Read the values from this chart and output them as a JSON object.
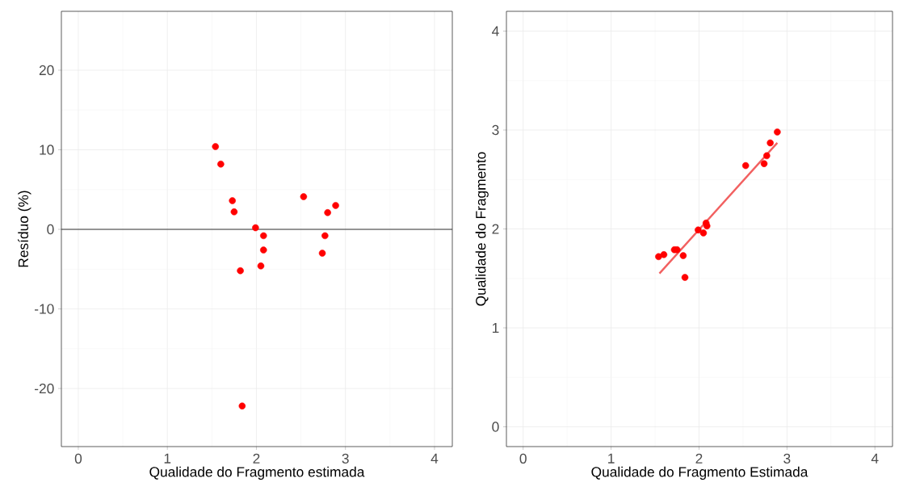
{
  "chart_data": [
    {
      "type": "scatter",
      "xlabel": "Qualidade do Fragmento estimada",
      "ylabel": "Resíduo (%)",
      "xlim": [
        -0.19,
        4.2
      ],
      "ylim": [
        -27.3,
        27.4
      ],
      "xticks": [
        0,
        1,
        2,
        3,
        4
      ],
      "yticks": [
        -20,
        -10,
        0,
        10,
        20
      ],
      "grid": true,
      "ref_lines": [
        {
          "axis": "y",
          "value": 0,
          "color": "#333333"
        }
      ],
      "series": [
        {
          "color": "#ff0000",
          "marker": "circle",
          "x": [
            1.54,
            1.6,
            1.73,
            1.75,
            1.82,
            1.84,
            1.99,
            2.08,
            2.08,
            2.05,
            2.53,
            2.74,
            2.77,
            2.8,
            2.89
          ],
          "values": [
            10.4,
            8.2,
            3.6,
            2.2,
            -5.2,
            -22.2,
            0.2,
            -0.8,
            -2.6,
            -4.6,
            4.1,
            -3.0,
            -0.8,
            2.1,
            3.0
          ]
        }
      ]
    },
    {
      "type": "scatter",
      "xlabel": "Qualidade do Fragmento Estimada",
      "ylabel": "Qualidade do Fragmento",
      "xlim": [
        -0.19,
        4.2
      ],
      "ylim": [
        -0.2,
        4.2
      ],
      "xticks": [
        0,
        1,
        2,
        3,
        4
      ],
      "yticks": [
        0,
        1,
        2,
        3,
        4
      ],
      "grid": true,
      "series": [
        {
          "type": "line",
          "color": "#f26060",
          "x": [
            1.55,
            2.89
          ],
          "values": [
            1.55,
            2.87
          ]
        },
        {
          "color": "#ff0000",
          "marker": "circle",
          "x": [
            1.54,
            1.6,
            1.72,
            1.75,
            1.82,
            1.84,
            1.99,
            2.05,
            2.08,
            2.09,
            2.53,
            2.74,
            2.77,
            2.81,
            2.89
          ],
          "values": [
            1.72,
            1.74,
            1.79,
            1.79,
            1.73,
            1.51,
            1.99,
            1.96,
            2.06,
            2.03,
            2.64,
            2.66,
            2.74,
            2.87,
            2.98
          ]
        }
      ]
    }
  ]
}
